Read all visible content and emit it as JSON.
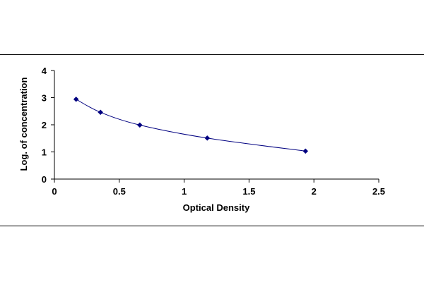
{
  "chart_data": {
    "type": "scatter",
    "title": "",
    "xlabel": "Optical Density",
    "ylabel": "Log. of concentration",
    "xlim": [
      0,
      2.5
    ],
    "ylim": [
      0,
      4
    ],
    "xticks": [
      0,
      0.5,
      1,
      1.5,
      2,
      2.5
    ],
    "xtick_labels": [
      "0",
      "0.5",
      "1",
      "1.5",
      "2",
      "2.5"
    ],
    "yticks": [
      0,
      1,
      2,
      3,
      4
    ],
    "ytick_labels": [
      "0",
      "1",
      "2",
      "3",
      "4"
    ],
    "grid": false,
    "legend": "none",
    "trendline": "smooth curve through points",
    "series": [
      {
        "x": [
          0.167,
          0.355,
          0.658,
          1.178,
          1.935
        ],
        "y": [
          2.94,
          2.46,
          1.99,
          1.51,
          1.03
        ],
        "marker": "diamond",
        "color": "#000080",
        "line_color": "#000080"
      }
    ]
  }
}
